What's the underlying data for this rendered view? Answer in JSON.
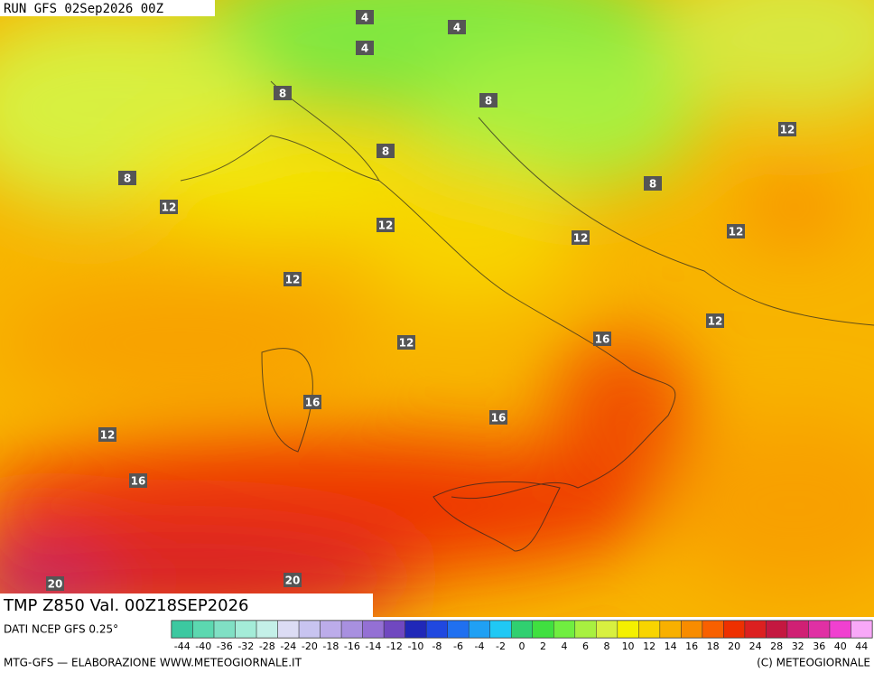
{
  "header": {
    "run": "RUN GFS 02Sep2026 00Z"
  },
  "title": "TMP Z850 Val. 00Z18SEP2026",
  "source": "DATI NCEP GFS 0.25°",
  "contour_labels": [
    "4",
    "4",
    "4",
    "8",
    "8",
    "8",
    "8",
    "12",
    "12",
    "12",
    "12",
    "12",
    "12",
    "12",
    "12",
    "16",
    "16",
    "16",
    "12",
    "16",
    "20",
    "20",
    "8"
  ],
  "legend": [
    {
      "label": "-44",
      "color": "#3cc8a0"
    },
    {
      "label": "-40",
      "color": "#5cd8b0"
    },
    {
      "label": "-36",
      "color": "#80e0c4"
    },
    {
      "label": "-32",
      "color": "#a4ecd8"
    },
    {
      "label": "-28",
      "color": "#c4f0e8"
    },
    {
      "label": "-24",
      "color": "#dcdcf4"
    },
    {
      "label": "-20",
      "color": "#c8c4f0"
    },
    {
      "label": "-18",
      "color": "#bcacea"
    },
    {
      "label": "-16",
      "color": "#a890e0"
    },
    {
      "label": "-14",
      "color": "#9470d4"
    },
    {
      "label": "-12",
      "color": "#7048c0"
    },
    {
      "label": "-10",
      "color": "#2028b8"
    },
    {
      "label": "-8",
      "color": "#2048e0"
    },
    {
      "label": "-6",
      "color": "#2070f0"
    },
    {
      "label": "-4",
      "color": "#20a0f4"
    },
    {
      "label": "-2",
      "color": "#20c8f4"
    },
    {
      "label": "0",
      "color": "#30d070"
    },
    {
      "label": "2",
      "color": "#40e040"
    },
    {
      "label": "4",
      "color": "#70ee40"
    },
    {
      "label": "6",
      "color": "#a8f040"
    },
    {
      "label": "8",
      "color": "#d8f040"
    },
    {
      "label": "10",
      "color": "#f4f000"
    },
    {
      "label": "12",
      "color": "#f8d400"
    },
    {
      "label": "14",
      "color": "#f8b000"
    },
    {
      "label": "16",
      "color": "#f88c00"
    },
    {
      "label": "18",
      "color": "#f86000"
    },
    {
      "label": "20",
      "color": "#ee3000"
    },
    {
      "label": "24",
      "color": "#dc2020"
    },
    {
      "label": "28",
      "color": "#c41840"
    },
    {
      "label": "32",
      "color": "#d02074"
    },
    {
      "label": "36",
      "color": "#e030a4"
    },
    {
      "label": "40",
      "color": "#f040d0"
    },
    {
      "label": "44",
      "color": "#f8a8f8"
    }
  ],
  "footer": {
    "left": "MTG-GFS — ELABORAZIONE WWW.METEOGIORNALE.IT",
    "right": "(C) METEOGIORNALE"
  }
}
